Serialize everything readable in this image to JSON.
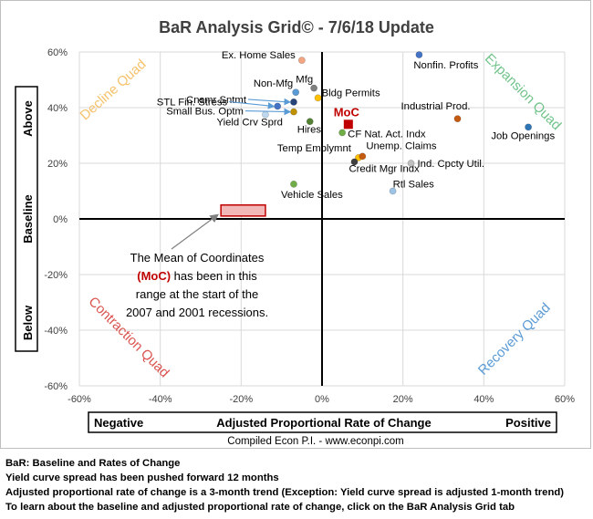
{
  "chart_data": {
    "type": "scatter",
    "title": "BaR Analysis Grid© - 7/6/18 Update",
    "xlim": [
      -60,
      60
    ],
    "ylim": [
      -60,
      60
    ],
    "x_ticks": [
      "-60%",
      "-40%",
      "-20%",
      "0%",
      "20%",
      "40%",
      "60%"
    ],
    "y_ticks": [
      "-60%",
      "-40%",
      "-20%",
      "0%",
      "20%",
      "40%",
      "60%"
    ],
    "xlabel": {
      "left": "Negative",
      "center": "Adjusted Proportional Rate of Change",
      "right": "Positive"
    },
    "ylabel": {
      "top": "Above",
      "middle": "Baseline",
      "bottom": "Below"
    },
    "grid": true,
    "quadrants": [
      {
        "label": "Decline Quad",
        "color": "#f5c26b"
      },
      {
        "label": "Expansion Quad",
        "color": "#70c38a"
      },
      {
        "label": "Contraction Quad",
        "color": "#d9534f"
      },
      {
        "label": "Recovery Quad",
        "color": "#5b9bd5"
      }
    ],
    "points": [
      {
        "label": "Nonfin. Profits",
        "x": 24,
        "y": 59,
        "color": "#4472c4"
      },
      {
        "label": "Ex. Home Sales",
        "x": -5,
        "y": 57,
        "color": "#f4a582"
      },
      {
        "label": "Mfg",
        "x": -2,
        "y": 47,
        "color": "#7f7f7f"
      },
      {
        "label": "Bldg Permits",
        "x": -1,
        "y": 43.5,
        "color": "#ffc000"
      },
      {
        "label": "Non-Mfg",
        "x": -6.5,
        "y": 45.5,
        "color": "#5b9bd5"
      },
      {
        "label": "STL Fin. Stress",
        "x": -11,
        "y": 40.5,
        "color": "#4472c4"
      },
      {
        "label": "Cnsmr Sntmt",
        "x": -7,
        "y": 42,
        "color": "#264478"
      },
      {
        "label": "Small Bus. Optm",
        "x": -7,
        "y": 38.5,
        "color": "#bf9000"
      },
      {
        "label": "Yield Crv Sprd",
        "x": -14,
        "y": 37.5,
        "color": "#bdd7ee"
      },
      {
        "label": "Hires",
        "x": -3,
        "y": 35,
        "color": "#548235"
      },
      {
        "label": "CF Nat. Act. Indx",
        "x": 5,
        "y": 31,
        "color": "#70ad47"
      },
      {
        "label": "Industrial Prod.",
        "x": 33.5,
        "y": 36,
        "color": "#c55a11"
      },
      {
        "label": "Job Openings",
        "x": 51,
        "y": 33,
        "color": "#2e75b6"
      },
      {
        "label": "Temp Emplymnt",
        "x": 9,
        "y": 22,
        "color": "#ffc000"
      },
      {
        "label": "Unemp. Claims",
        "x": 10,
        "y": 22.5,
        "color": "#c55a11"
      },
      {
        "label": "Credit Mgr Indx",
        "x": 8,
        "y": 20.5,
        "color": "#404040"
      },
      {
        "label": "Ind. Cpcty Util.",
        "x": 22,
        "y": 20,
        "color": "#bfbfbf"
      },
      {
        "label": "Rtl Sales",
        "x": 17.5,
        "y": 10,
        "color": "#9dc3e6"
      },
      {
        "label": "Vehicle Sales",
        "x": -7,
        "y": 12.5,
        "color": "#70ad47"
      }
    ],
    "moc": {
      "label": "MoC",
      "x": 6.5,
      "y": 34,
      "color": "#c00000"
    },
    "recession_range": {
      "x_range": [
        -25,
        -14
      ],
      "y_range": [
        3,
        5
      ]
    },
    "annotation": {
      "line1": "The Mean of Coordinates",
      "moc_text": "(MoC)",
      "line2_rest": " has been in this",
      "line3": "range at the start of the",
      "line4": "2007 and 2001 recessions."
    },
    "credit": "Compiled Econ P.I. - www.econpi.com"
  },
  "footnotes": [
    "BaR: Baseline and Rates of Change",
    "Yield curve spread has been pushed forward 12 months",
    "Adjusted proportional rate of change is a 3-month trend (Exception: Yield curve spread is adjusted 1-month trend)",
    "To learn about the baseline and adjusted proportional rate of change, click on the BaR Analysis Grid tab"
  ]
}
